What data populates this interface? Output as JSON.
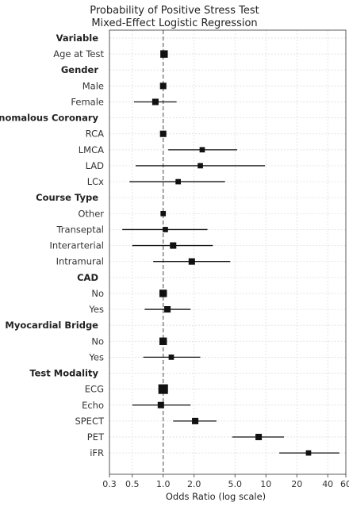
{
  "chart_data": {
    "type": "forest",
    "title": "Probability of Positive Stress Test",
    "subtitle": "Mixed-Effect Logistic Regression",
    "xlabel": "Odds Ratio (log scale)",
    "xscale": "log",
    "xlim": [
      0.3,
      60
    ],
    "xticks": [
      0.3,
      0.5,
      1.0,
      2.0,
      5.0,
      10,
      20,
      40,
      60
    ],
    "xtick_labels": [
      "0.3",
      "0.5",
      "1.0",
      "2.0",
      "5.0",
      "10",
      "20",
      "40",
      "60"
    ],
    "reference_line": 1.0,
    "grid": true,
    "rows": [
      {
        "label": "Variable",
        "header": true
      },
      {
        "label": "Age at Test",
        "or": 1.02,
        "lo": 0.99,
        "hi": 1.05,
        "weight": 4
      },
      {
        "label": "Gender",
        "header": true
      },
      {
        "label": "Male",
        "or": 1.0,
        "lo": 1.0,
        "hi": 1.0,
        "weight": 3
      },
      {
        "label": "Female",
        "or": 0.84,
        "lo": 0.52,
        "hi": 1.35,
        "weight": 3
      },
      {
        "label": "Anomalous Coronary",
        "header": true
      },
      {
        "label": "RCA",
        "or": 1.0,
        "lo": 1.0,
        "hi": 1.0,
        "weight": 3
      },
      {
        "label": "LMCA",
        "or": 2.4,
        "lo": 1.12,
        "hi": 5.25,
        "weight": 2
      },
      {
        "label": "LAD",
        "or": 2.3,
        "lo": 0.54,
        "hi": 9.8,
        "weight": 2
      },
      {
        "label": "LCx",
        "or": 1.4,
        "lo": 0.47,
        "hi": 4.0,
        "weight": 2
      },
      {
        "label": "Course Type",
        "header": true
      },
      {
        "label": "Other",
        "or": 1.0,
        "lo": 1.0,
        "hi": 1.0,
        "weight": 2
      },
      {
        "label": "Transeptal",
        "or": 1.05,
        "lo": 0.4,
        "hi": 2.7,
        "weight": 2
      },
      {
        "label": "Interarterial",
        "or": 1.25,
        "lo": 0.5,
        "hi": 3.05,
        "weight": 3
      },
      {
        "label": "Intramural",
        "or": 1.9,
        "lo": 0.8,
        "hi": 4.5,
        "weight": 3
      },
      {
        "label": "CAD",
        "header": true
      },
      {
        "label": "No",
        "or": 1.0,
        "lo": 1.0,
        "hi": 1.0,
        "weight": 4
      },
      {
        "label": "Yes",
        "or": 1.1,
        "lo": 0.66,
        "hi": 1.85,
        "weight": 3
      },
      {
        "label": "Myocardial Bridge",
        "header": true
      },
      {
        "label": "No",
        "or": 1.0,
        "lo": 1.0,
        "hi": 1.0,
        "weight": 4
      },
      {
        "label": "Yes",
        "or": 1.2,
        "lo": 0.64,
        "hi": 2.3,
        "weight": 2
      },
      {
        "label": "Test Modality",
        "header": true
      },
      {
        "label": "ECG",
        "or": 1.0,
        "lo": 1.0,
        "hi": 1.0,
        "weight": 6
      },
      {
        "label": "Echo",
        "or": 0.95,
        "lo": 0.5,
        "hi": 1.85,
        "weight": 3
      },
      {
        "label": "SPECT",
        "or": 2.05,
        "lo": 1.25,
        "hi": 3.3,
        "weight": 3
      },
      {
        "label": "PET",
        "or": 8.5,
        "lo": 4.7,
        "hi": 15.0,
        "weight": 3
      },
      {
        "label": "iFR",
        "or": 26,
        "lo": 13.5,
        "hi": 52,
        "weight": 2
      }
    ]
  }
}
